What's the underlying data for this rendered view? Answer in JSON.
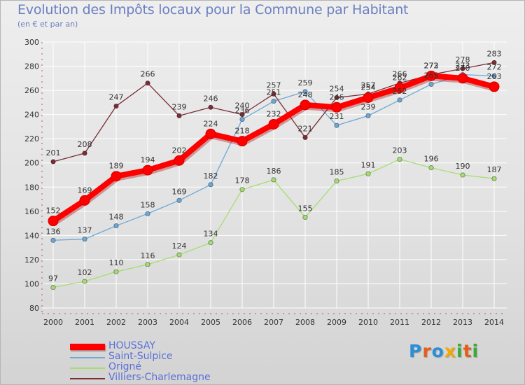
{
  "title": "Evolution des Impôts locaux pour la Commune par Habitant",
  "subtitle": "(en € et par an)",
  "logo": {
    "text": "Proxiti",
    "letters": [
      "P",
      "r",
      "o",
      "x",
      "i",
      "t",
      "i"
    ],
    "colors": [
      "#2a8fd6",
      "#e85c16",
      "#2a8fd6",
      "#f2a900",
      "#3aaa35",
      "#e85c16",
      "#3aaa35"
    ]
  },
  "chart_data": {
    "type": "line",
    "title": "Evolution des Impôts locaux pour la Commune par Habitant",
    "subtitle": "(en € et par an)",
    "xlabel": "",
    "ylabel": "",
    "ylim": [
      80,
      300
    ],
    "yticks": [
      80,
      100,
      120,
      140,
      160,
      180,
      200,
      220,
      240,
      260,
      280,
      300
    ],
    "grid": true,
    "legend_position": "bottom-left",
    "categories": [
      "2000",
      "2001",
      "2002",
      "2003",
      "2004",
      "2005",
      "2006",
      "2007",
      "2008",
      "2009",
      "2010",
      "2011",
      "2012",
      "2013",
      "2014"
    ],
    "series": [
      {
        "name": "HOUSSAY",
        "color": "#ff0000",
        "emphasis": true,
        "values": [
          152,
          169,
          189,
          194,
          202,
          224,
          218,
          232,
          248,
          246,
          254,
          262,
          272,
          270,
          263
        ]
      },
      {
        "name": "Saint-Sulpice",
        "color": "#6da8d6",
        "values": [
          136,
          137,
          148,
          158,
          169,
          182,
          236,
          251,
          259,
          231,
          239,
          252,
          265,
          273,
          272
        ]
      },
      {
        "name": "Origné",
        "color": "#a6dd72",
        "values": [
          97,
          102,
          110,
          116,
          124,
          134,
          178,
          186,
          155,
          185,
          191,
          203,
          196,
          190,
          187
        ]
      },
      {
        "name": "Villiers-Charlemagne",
        "color": "#7a2d35",
        "values": [
          201,
          208,
          247,
          266,
          239,
          246,
          240,
          257,
          221,
          254,
          257,
          266,
          273,
          278,
          283
        ]
      }
    ]
  }
}
